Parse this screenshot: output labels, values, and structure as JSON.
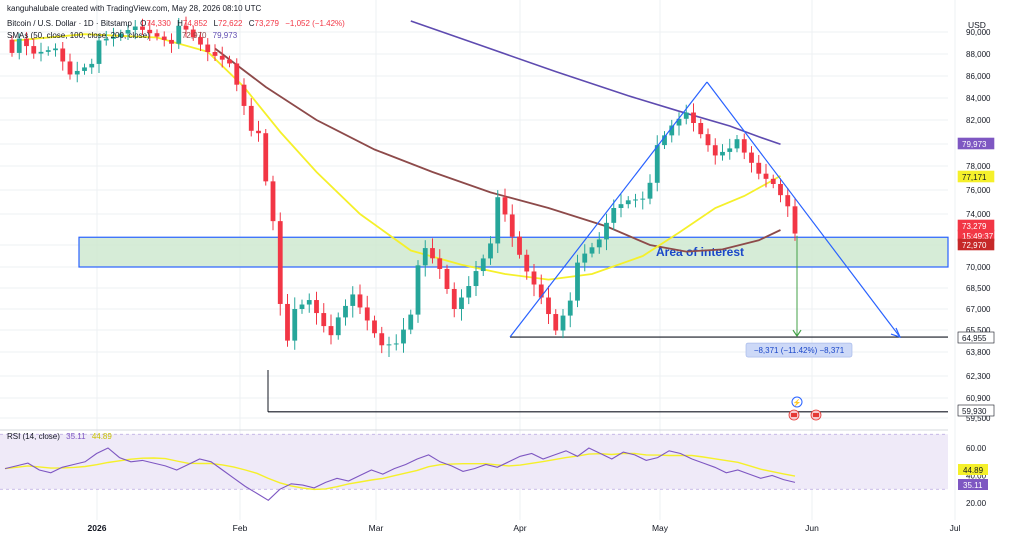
{
  "header": {
    "attribution": "kanguhalubale created with TradingView.com, May 28, 2026 08:10 UTC",
    "symbol": "Bitcoin / U.S. Dollar · 1D · Bitstamp",
    "ohlc": {
      "open_label": "O",
      "open": "74,330",
      "high_label": "H",
      "high": "74,852",
      "low_label": "L",
      "low": "72,622",
      "close_label": "C",
      "close": "73,279",
      "change": "−1,052 (−1.42%)"
    },
    "sma_label": "SMAs (50, close, 100, close, 200, close)",
    "sma_values": [
      "72,970",
      "79,973"
    ]
  },
  "currency": "USD",
  "price_ticks": [
    "90,000",
    "88,000",
    "86,000",
    "84,000",
    "82,000",
    "80,000",
    "78,000",
    "76,000",
    "74,000",
    "72,000",
    "70,000",
    "68,500",
    "67,000",
    "65,500",
    "63,800",
    "62,300",
    "60,900",
    "59,500"
  ],
  "price_tags": [
    {
      "text": "79,973",
      "color": "#7e57c2"
    },
    {
      "text": "77,171",
      "color": "#f5f02a"
    },
    {
      "text": "73,279",
      "color": "#f23645"
    },
    {
      "text": "15:49:37",
      "color": "#f23645"
    },
    {
      "text": "72,970",
      "color": "#c62828"
    },
    {
      "text": "64,955",
      "color": "#ffffff"
    },
    {
      "text": "59,930",
      "color": "#ffffff"
    }
  ],
  "annotations": {
    "area_label": "Area of interest",
    "measure_label": "−8,371 (−11.42%) −8,371"
  },
  "rsi": {
    "label": "RSI (14, close)",
    "value": "35.11",
    "ma_value": "44.89",
    "ticks": [
      "60.00",
      "40.00",
      "20.00"
    ],
    "tags": [
      {
        "text": "44.89",
        "color": "#f5f02a"
      },
      {
        "text": "35.11",
        "color": "#7e57c2"
      }
    ]
  },
  "time_axis": [
    {
      "label": "2026",
      "bold": true
    },
    {
      "label": "Feb",
      "bold": false
    },
    {
      "label": "Mar",
      "bold": false
    },
    {
      "label": "Apr",
      "bold": false
    },
    {
      "label": "May",
      "bold": false
    },
    {
      "label": "Jun",
      "bold": false
    },
    {
      "label": "Jul",
      "bold": false
    }
  ],
  "colors": {
    "up": "#26a69a",
    "down": "#f23645",
    "sma50": "#f5f02a",
    "sma100": "#8d4a4a",
    "sma200": "#5e4bb0",
    "trend": "#2962ff",
    "zone_fill": "#cfe9d0",
    "zone_border": "#2962ff",
    "rsi_line": "#7e57c2",
    "rsi_ma": "#f5f02a",
    "grid": "#eef0f3"
  },
  "chart_data": {
    "type": "candlestick",
    "title": "Bitcoin / U.S. Dollar · 1D · Bitstamp",
    "y_axis": "USD",
    "ylim": [
      58000,
      91000
    ],
    "price_path": [
      [
        0,
        89000
      ],
      [
        3,
        87500
      ],
      [
        6,
        88500
      ],
      [
        8,
        86500
      ],
      [
        11,
        88000
      ],
      [
        14,
        89000
      ],
      [
        17,
        90500
      ],
      [
        21,
        90000
      ],
      [
        24,
        89500
      ],
      [
        27,
        88000
      ],
      [
        30,
        87500
      ],
      [
        32,
        84000
      ],
      [
        34,
        80000
      ],
      [
        35,
        76000
      ],
      [
        36,
        73000
      ],
      [
        37,
        67000
      ],
      [
        38,
        64500
      ],
      [
        39,
        67000
      ],
      [
        41,
        68000
      ],
      [
        43,
        66500
      ],
      [
        45,
        65500
      ],
      [
        47,
        67500
      ],
      [
        49,
        66000
      ],
      [
        51,
        64500
      ],
      [
        53,
        65000
      ],
      [
        55,
        67500
      ],
      [
        57,
        71000
      ],
      [
        59,
        69500
      ],
      [
        61,
        67000
      ],
      [
        63,
        69000
      ],
      [
        65,
        71500
      ],
      [
        67,
        74500
      ],
      [
        69,
        72000
      ],
      [
        71,
        69500
      ],
      [
        73,
        68000
      ],
      [
        75,
        66000
      ],
      [
        77,
        68500
      ],
      [
        79,
        70500
      ],
      [
        81,
        72000
      ],
      [
        83,
        74500
      ],
      [
        85,
        75500
      ],
      [
        87,
        76000
      ],
      [
        89,
        79000
      ],
      [
        91,
        81000
      ],
      [
        93,
        82500
      ],
      [
        95,
        81000
      ],
      [
        97,
        79500
      ],
      [
        99,
        80500
      ],
      [
        101,
        78500
      ],
      [
        103,
        77000
      ],
      [
        105,
        76500
      ],
      [
        107,
        75000
      ],
      [
        108,
        73279
      ]
    ],
    "sma50_path": [
      [
        0,
        89200
      ],
      [
        10,
        89800
      ],
      [
        20,
        89500
      ],
      [
        27,
        88200
      ],
      [
        32,
        85000
      ],
      [
        37,
        81000
      ],
      [
        42,
        77500
      ],
      [
        48,
        74000
      ],
      [
        55,
        71500
      ],
      [
        62,
        70200
      ],
      [
        68,
        69500
      ],
      [
        74,
        69100
      ],
      [
        80,
        69500
      ],
      [
        87,
        71000
      ],
      [
        92,
        72800
      ],
      [
        97,
        74500
      ],
      [
        101,
        75500
      ],
      [
        104,
        76500
      ],
      [
        106,
        77171
      ]
    ],
    "sma100_path": [
      [
        28,
        88500
      ],
      [
        35,
        85000
      ],
      [
        42,
        82000
      ],
      [
        50,
        79500
      ],
      [
        58,
        77500
      ],
      [
        66,
        75800
      ],
      [
        74,
        74500
      ],
      [
        82,
        73200
      ],
      [
        88,
        72000
      ],
      [
        93,
        71400
      ],
      [
        98,
        71600
      ],
      [
        103,
        72300
      ],
      [
        106,
        72970
      ]
    ],
    "sma200_path": [
      [
        55,
        91000
      ],
      [
        65,
        88700
      ],
      [
        75,
        86400
      ],
      [
        85,
        84200
      ],
      [
        92,
        82800
      ],
      [
        99,
        81500
      ],
      [
        103,
        80600
      ],
      [
        106,
        79973
      ]
    ],
    "zone": [
      70000,
      72500
    ],
    "support_lines": [
      64955,
      59930
    ],
    "rsi_series": [
      45,
      47,
      49,
      44,
      42,
      46,
      48,
      50,
      56,
      60,
      53,
      50,
      51,
      49,
      47,
      44,
      48,
      52,
      50,
      44,
      38,
      32,
      27,
      22,
      30,
      34,
      33,
      31,
      35,
      38,
      36,
      40,
      44,
      41,
      45,
      48,
      52,
      55,
      50,
      47,
      43,
      45,
      48,
      46,
      50,
      54,
      56,
      52,
      55,
      58,
      54,
      60,
      56,
      52,
      57,
      55,
      51,
      53,
      58,
      56,
      52,
      49,
      46,
      42,
      44,
      41,
      38,
      40,
      37,
      35
    ]
  }
}
